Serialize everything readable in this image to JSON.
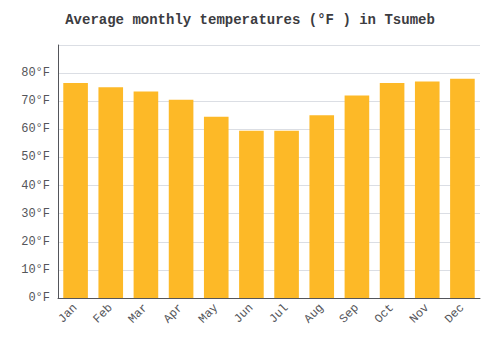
{
  "chart_data": {
    "type": "bar",
    "title": "Average monthly temperatures (°F ) in Tsumeb",
    "categories": [
      "Jan",
      "Feb",
      "Mar",
      "Apr",
      "May",
      "Jun",
      "Jul",
      "Aug",
      "Sep",
      "Oct",
      "Nov",
      "Dec"
    ],
    "values": [
      76.5,
      75.0,
      73.5,
      70.5,
      64.5,
      59.5,
      59.5,
      65.0,
      72.0,
      76.5,
      77.0,
      78.0
    ],
    "color": "#FDB927",
    "ylim": [
      0,
      90
    ],
    "yticks": [
      {
        "value": 0,
        "label": "0°F"
      },
      {
        "value": 10,
        "label": "10°F"
      },
      {
        "value": 20,
        "label": "20°F"
      },
      {
        "value": 30,
        "label": "30°F"
      },
      {
        "value": 40,
        "label": "40°F"
      },
      {
        "value": 50,
        "label": "50°F"
      },
      {
        "value": 60,
        "label": "60°F"
      },
      {
        "value": 70,
        "label": "70°F"
      },
      {
        "value": 80,
        "label": "80°F"
      }
    ],
    "grid": true
  }
}
